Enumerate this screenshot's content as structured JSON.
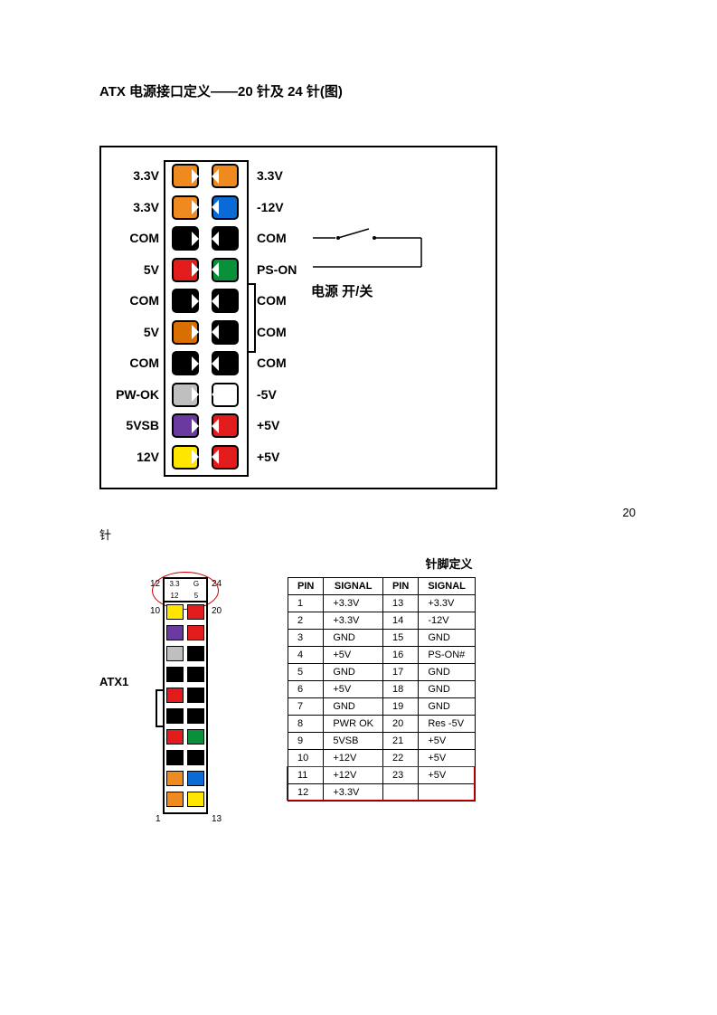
{
  "title": "ATX 电源接口定义——20 针及 24 针(图)",
  "colors": {
    "orange": "#ee8a1f",
    "blue": "#0a6bd6",
    "black": "#000000",
    "red": "#e21b1b",
    "green": "#0a8f3a",
    "white": "#ffffff",
    "gray": "#bfbfbf",
    "purple": "#6b3aa0",
    "yellow": "#ffe600",
    "darkorange": "#d96f00"
  },
  "d1": {
    "power_text": "电源  开/关",
    "rows": [
      {
        "left_label": "3.3V",
        "left_color": "orange",
        "right_color": "orange",
        "right_label": "3.3V"
      },
      {
        "left_label": "3.3V",
        "left_color": "orange",
        "right_color": "blue",
        "right_label": "-12V"
      },
      {
        "left_label": "COM",
        "left_color": "black",
        "right_color": "black",
        "right_label": "COM"
      },
      {
        "left_label": "5V",
        "left_color": "red",
        "right_color": "green",
        "right_label": "PS-ON"
      },
      {
        "left_label": "COM",
        "left_color": "black",
        "right_color": "black",
        "right_label": "COM"
      },
      {
        "left_label": "5V",
        "left_color": "darkorange",
        "right_color": "black",
        "right_label": "COM"
      },
      {
        "left_label": "COM",
        "left_color": "black",
        "right_color": "black",
        "right_label": "COM"
      },
      {
        "left_label": "PW-OK",
        "left_color": "gray",
        "right_color": "white",
        "right_label": "-5V"
      },
      {
        "left_label": "5VSB",
        "left_color": "purple",
        "right_color": "red",
        "right_label": "+5V"
      },
      {
        "left_label": "12V",
        "left_color": "yellow",
        "right_color": "red",
        "right_label": "+5V"
      }
    ]
  },
  "caption20": {
    "num": "20",
    "char": "针"
  },
  "d2": {
    "title": "针脚定义",
    "atx_label": "ATX1",
    "corners": {
      "tl": "12",
      "tr": "24",
      "bl": "1",
      "br": "13",
      "ext_l": "10",
      "ext_r": "20"
    },
    "ext_cells": [
      {
        "row": 0,
        "col": 0,
        "text": "3.3",
        "fill": "#fff"
      },
      {
        "row": 0,
        "col": 1,
        "text": "G",
        "fill": "#fff"
      },
      {
        "row": 1,
        "col": 0,
        "text": "12",
        "fill": "#fff"
      },
      {
        "row": 1,
        "col": 1,
        "text": "5",
        "fill": "#fff"
      }
    ],
    "pins_left": [
      "orange",
      "orange",
      "black",
      "red",
      "black",
      "red",
      "black",
      "gray",
      "purple",
      "yellow",
      "yellow",
      "orange"
    ],
    "pins_right": [
      "yellow",
      "blue",
      "black",
      "green",
      "black",
      "black",
      "black",
      "black",
      "red",
      "red",
      "red",
      "orange"
    ],
    "table": {
      "headers": [
        "PIN",
        "SIGNAL",
        "PIN",
        "SIGNAL"
      ],
      "rows": [
        [
          "1",
          "+3.3V",
          "13",
          "+3.3V"
        ],
        [
          "2",
          "+3.3V",
          "14",
          "-12V"
        ],
        [
          "3",
          "GND",
          "15",
          "GND"
        ],
        [
          "4",
          "+5V",
          "16",
          "PS-ON#"
        ],
        [
          "5",
          "GND",
          "17",
          "GND"
        ],
        [
          "6",
          "+5V",
          "18",
          "GND"
        ],
        [
          "7",
          "GND",
          "19",
          "GND"
        ],
        [
          "8",
          "PWR OK",
          "20",
          "Res  -5V"
        ],
        [
          "9",
          "5VSB",
          "21",
          "+5V"
        ],
        [
          "10",
          "+12V",
          "22",
          "+5V"
        ],
        [
          "11",
          "+12V",
          "23",
          "+5V"
        ],
        [
          "12",
          "+3.3V",
          "",
          ""
        ]
      ],
      "highlight_from_row": 10
    }
  }
}
